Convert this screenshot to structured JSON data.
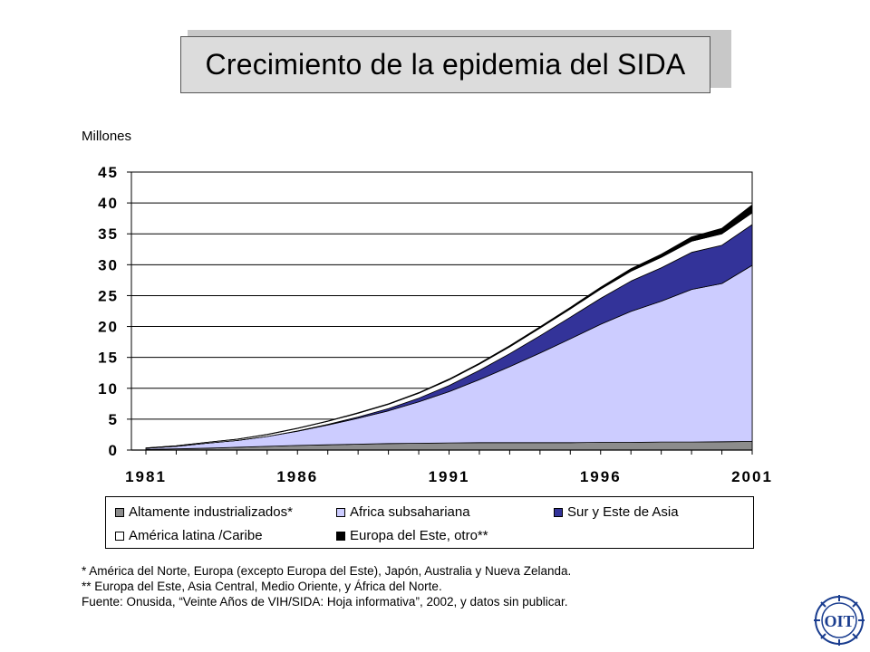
{
  "title": "Crecimiento de la epidemia del SIDA",
  "units_label": "Millones",
  "legend": [
    {
      "label": "Altamente industrializados*",
      "color": "#8c8c8c"
    },
    {
      "label": "Africa subsahariana",
      "color": "#ccccff"
    },
    {
      "label": "Sur y Este de Asia",
      "color": "#333399"
    },
    {
      "label": "América latina /Caribe",
      "color": "#ffffff"
    },
    {
      "label": "Europa del Este, otro**",
      "color": "#000000"
    }
  ],
  "notes": [
    "* América del Norte, Europa (excepto Europa del Este), Japón, Australia y Nueva Zelanda.",
    "** Europa del Este, Asia Central, Medio Oriente, y África del Norte.",
    "Fuente: Onusida, “Veinte Años de VIH/SIDA: Hoja informativa”, 2002, y datos sin publicar."
  ],
  "logo_text": "OIT",
  "chart_data": {
    "type": "area",
    "stacked": true,
    "x": [
      1981,
      1982,
      1983,
      1984,
      1985,
      1986,
      1987,
      1988,
      1989,
      1990,
      1991,
      1992,
      1993,
      1994,
      1995,
      1996,
      1997,
      1998,
      1999,
      2000,
      2001
    ],
    "xticks": [
      "1981",
      "1986",
      "1991",
      "1996",
      "2001"
    ],
    "yticks": [
      "0",
      "5",
      "10",
      "15",
      "20",
      "25",
      "30",
      "35",
      "40",
      "45"
    ],
    "ylim": [
      0,
      45
    ],
    "grid": "horizontal",
    "series": [
      {
        "name": "Altamente industrializados*",
        "color": "#8c8c8c",
        "values": [
          0.1,
          0.2,
          0.3,
          0.45,
          0.6,
          0.75,
          0.85,
          0.95,
          1.05,
          1.1,
          1.15,
          1.2,
          1.2,
          1.2,
          1.2,
          1.25,
          1.25,
          1.3,
          1.3,
          1.35,
          1.4
        ]
      },
      {
        "name": "Africa subsahariana",
        "color": "#ccccff",
        "values": [
          0.2,
          0.4,
          0.8,
          1.1,
          1.6,
          2.3,
          3.2,
          4.2,
          5.3,
          6.7,
          8.3,
          10.2,
          12.3,
          14.5,
          16.8,
          19.1,
          21.2,
          22.8,
          24.7,
          25.6,
          28.5
        ]
      },
      {
        "name": "Sur y Este de Asia",
        "color": "#333399",
        "values": [
          0.0,
          0.0,
          0.0,
          0.0,
          0.0,
          0.05,
          0.1,
          0.2,
          0.35,
          0.6,
          1.0,
          1.5,
          2.1,
          2.8,
          3.5,
          4.2,
          4.9,
          5.4,
          6.0,
          6.2,
          6.6
        ]
      },
      {
        "name": "América latina /Caribe",
        "color": "#ffffff",
        "values": [
          0.05,
          0.1,
          0.15,
          0.2,
          0.3,
          0.4,
          0.5,
          0.6,
          0.7,
          0.8,
          0.9,
          1.0,
          1.1,
          1.25,
          1.35,
          1.5,
          1.6,
          1.7,
          1.8,
          1.85,
          1.9
        ]
      },
      {
        "name": "Europa del Este, otro**",
        "color": "#000000",
        "values": [
          0.0,
          0.0,
          0.0,
          0.0,
          0.05,
          0.05,
          0.05,
          0.1,
          0.1,
          0.1,
          0.15,
          0.15,
          0.2,
          0.2,
          0.25,
          0.3,
          0.4,
          0.5,
          0.7,
          0.9,
          1.3
        ]
      }
    ]
  }
}
